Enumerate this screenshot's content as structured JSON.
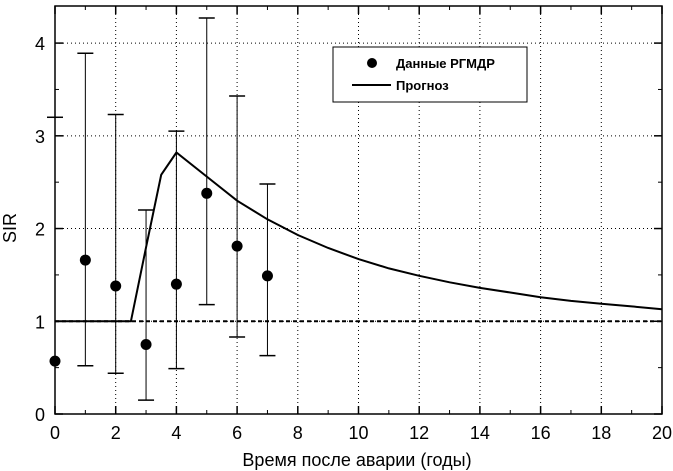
{
  "chart_data": {
    "type": "scatter",
    "xlabel": "Время после аварии (годы)",
    "ylabel": "SIR",
    "xlim": [
      0,
      20
    ],
    "ylim": [
      0,
      4.4
    ],
    "xticks": [
      "0",
      "2",
      "4",
      "6",
      "8",
      "10",
      "12",
      "14",
      "16",
      "18",
      "20"
    ],
    "yticks": [
      "0",
      "1",
      "2",
      "3",
      "4"
    ],
    "grid": "dotted",
    "legend_position": "top-right",
    "series": [
      {
        "name": "Данные РГМДР",
        "kind": "points-with-error-bars",
        "points": [
          {
            "x": 0,
            "y": 0.57,
            "low": null,
            "high": 3.2
          },
          {
            "x": 1,
            "y": 1.66,
            "low": 0.52,
            "high": 3.89
          },
          {
            "x": 2,
            "y": 1.38,
            "low": 0.44,
            "high": 3.23
          },
          {
            "x": 3,
            "y": 0.75,
            "low": 0.15,
            "high": 2.2
          },
          {
            "x": 4,
            "y": 1.4,
            "low": 0.49,
            "high": 3.05
          },
          {
            "x": 5,
            "y": 2.38,
            "low": 1.18,
            "high": 4.27
          },
          {
            "x": 6,
            "y": 1.81,
            "low": 0.83,
            "high": 3.43
          },
          {
            "x": 7,
            "y": 1.49,
            "low": 0.63,
            "high": 2.48
          }
        ]
      },
      {
        "name": "Прогноз",
        "kind": "line",
        "x": [
          0,
          1,
          2,
          2.5,
          3,
          3.5,
          4,
          5,
          6,
          7,
          8,
          9,
          10,
          11,
          12,
          13,
          14,
          15,
          16,
          17,
          18,
          19,
          20
        ],
        "y": [
          1.0,
          1.0,
          1.0,
          1.0,
          1.8,
          2.58,
          2.82,
          2.56,
          2.3,
          2.1,
          1.93,
          1.79,
          1.67,
          1.57,
          1.49,
          1.42,
          1.36,
          1.31,
          1.26,
          1.22,
          1.19,
          1.16,
          1.13
        ]
      }
    ],
    "reference_line": {
      "y": 1.0,
      "style": "dashed"
    }
  }
}
